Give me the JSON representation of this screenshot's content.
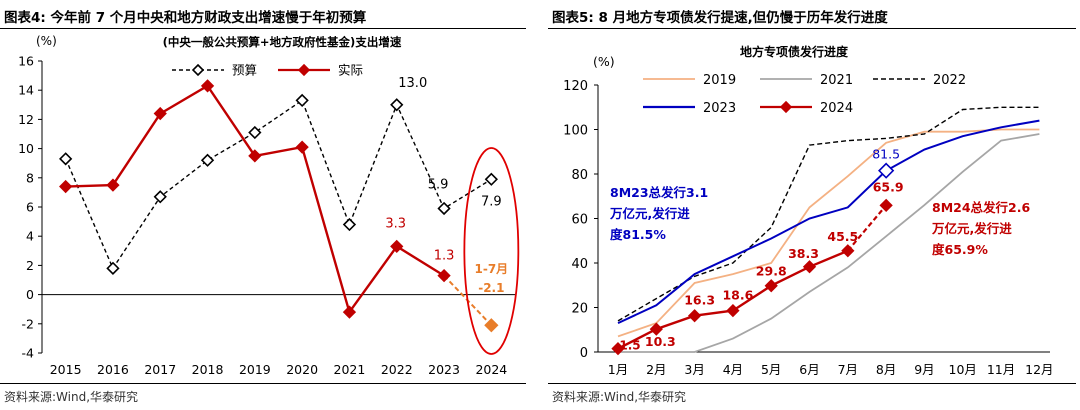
{
  "left": {
    "figure_title": "图表4:  今年前 7 个月中央和地方财政支出增速慢于年初预算",
    "source": "资料来源:Wind,华泰研究",
    "chart_data": {
      "type": "line",
      "title": "(中央一般公共预算+地方政府性基金)支出增速",
      "ylabel": "(%)",
      "categories": [
        "2015",
        "2016",
        "2017",
        "2018",
        "2019",
        "2020",
        "2021",
        "2022",
        "2023",
        "2024"
      ],
      "ylim": [
        -4,
        16
      ],
      "yticks": [
        -4,
        -2,
        0,
        2,
        4,
        6,
        8,
        10,
        12,
        14,
        16
      ],
      "legend": "top",
      "series": [
        {
          "name": "预算",
          "style": "dashed",
          "color": "#000000",
          "marker": "diamond-open",
          "values": [
            9.3,
            1.8,
            6.7,
            9.2,
            11.1,
            13.3,
            4.8,
            13.0,
            5.9,
            7.9
          ]
        },
        {
          "name": "实际",
          "style": "solid",
          "color": "#c00000",
          "marker": "diamond",
          "values": [
            7.4,
            7.5,
            12.4,
            14.3,
            9.5,
            10.1,
            -1.2,
            3.3,
            1.3,
            null
          ]
        }
      ],
      "ytd_point": {
        "category": "2024",
        "value": -2.1,
        "label": "1-7月",
        "value_label": "-2.1",
        "color": "#e87d2a"
      },
      "labels": [
        {
          "text": "13.0",
          "series": 0,
          "index": 7,
          "color": "#000000"
        },
        {
          "text": "5.9",
          "series": 0,
          "index": 8,
          "color": "#000000"
        },
        {
          "text": "7.9",
          "series": 0,
          "index": 9,
          "color": "#000000"
        },
        {
          "text": "3.3",
          "series": 1,
          "index": 7,
          "color": "#c00000"
        },
        {
          "text": "1.3",
          "series": 1,
          "index": 8,
          "color": "#c00000"
        }
      ],
      "highlight_color": "#e00000"
    }
  },
  "right": {
    "figure_title": "图表5:  8 月地方专项债发行提速,但仍慢于历年发行进度",
    "source": "资料来源:Wind,华泰研究",
    "chart_data": {
      "type": "line",
      "title": "地方专项债发行进度",
      "ylabel": "(%)",
      "categories": [
        "1月",
        "2月",
        "3月",
        "4月",
        "5月",
        "6月",
        "7月",
        "8月",
        "9月",
        "10月",
        "11月",
        "12月"
      ],
      "ylim": [
        0,
        120
      ],
      "yticks": [
        0,
        20,
        40,
        60,
        80,
        100,
        120
      ],
      "legend": "top-left",
      "series": [
        {
          "name": "2019",
          "style": "solid",
          "color": "#f4b183",
          "values": [
            7,
            13,
            31,
            35,
            40,
            65,
            79,
            94,
            99,
            99,
            100,
            100
          ]
        },
        {
          "name": "2021",
          "style": "solid",
          "color": "#a6a6a6",
          "values": [
            0,
            0,
            0,
            6,
            15,
            27,
            38,
            52,
            66,
            81,
            95,
            98
          ]
        },
        {
          "name": "2022",
          "style": "dashed",
          "color": "#000000",
          "values": [
            14,
            24,
            34,
            40,
            56,
            93,
            95,
            96,
            98,
            109,
            110,
            110
          ]
        },
        {
          "name": "2023",
          "style": "solid",
          "color": "#0000c0",
          "values": [
            13,
            21,
            35,
            43,
            51,
            60,
            65,
            81.5,
            91,
            97,
            101,
            104
          ]
        },
        {
          "name": "2024",
          "style": "solid",
          "color": "#c00000",
          "values": [
            1.5,
            10.3,
            16.3,
            18.6,
            29.8,
            38.3,
            45.5,
            65.9,
            null,
            null,
            null,
            null
          ]
        }
      ],
      "point_labels_2024": [
        "1.5",
        "10.3",
        "16.3",
        "18.6",
        "29.8",
        "38.3",
        "45.5",
        "65.9"
      ],
      "label_2023_aug": "81.5",
      "annotation_2023": [
        "8M23总发行3.1",
        "万亿元,发行进",
        "度81.5%"
      ],
      "annotation_2024": [
        "8M24总发行2.6",
        "万亿元,发行进",
        "度65.9%"
      ],
      "annotation_2023_color": "#0000c0",
      "annotation_2024_color": "#c00000"
    }
  }
}
